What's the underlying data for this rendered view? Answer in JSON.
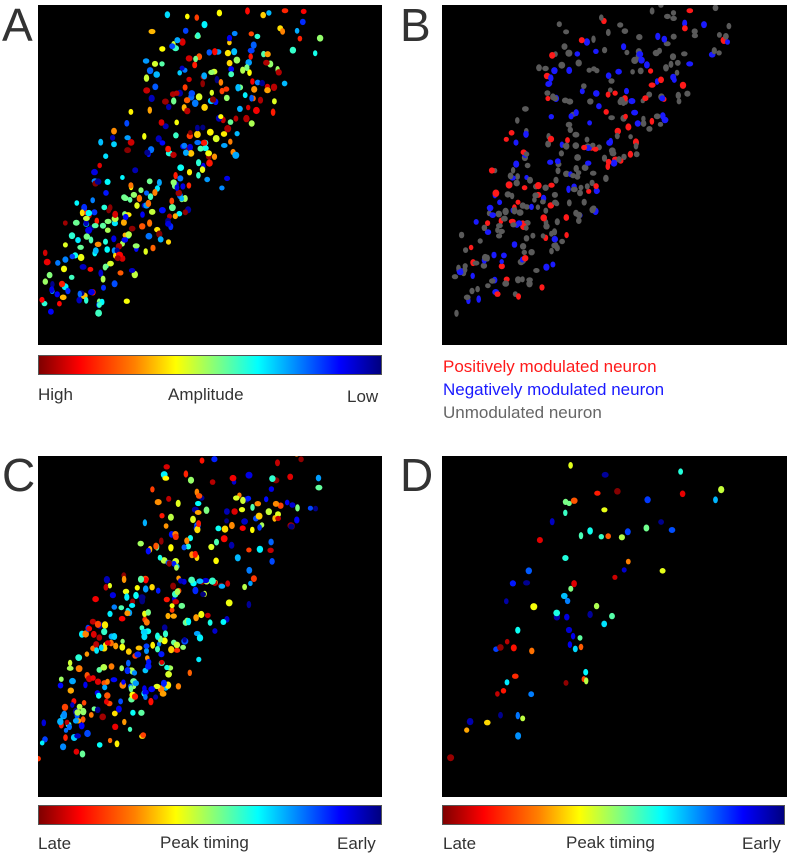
{
  "panels": [
    {
      "letter": "A",
      "colorbar": {
        "left": "High",
        "center": "Amplitude",
        "right": "Low"
      }
    },
    {
      "letter": "B",
      "legend": [
        "Positively modulated neuron",
        "Negatively modulated neuron",
        "Unmodulated neuron"
      ]
    },
    {
      "letter": "C",
      "colorbar": {
        "left": "Late",
        "center": "Peak timing",
        "right": "Early"
      }
    },
    {
      "letter": "D",
      "colorbar": {
        "left": "Late",
        "center": "Peak timing",
        "right": "Early"
      }
    }
  ]
}
